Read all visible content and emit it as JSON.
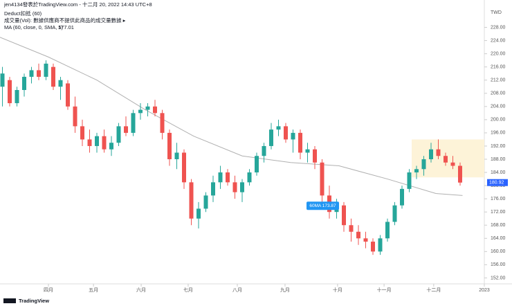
{
  "header": {
    "byline": "jen4134發表於TradingView.com - 十二月 20, 2022 14:43 UTC+8",
    "symbol": "Deduct扣抵 (60)",
    "volume_note": "成交量(Vol): 數據供應商不提供此商品的成交量數據 ▸",
    "currency": "TWD",
    "logo": "TradingView"
  },
  "chart_data": {
    "type": "candlestick",
    "ylim": [
      150.2,
      236.3
    ],
    "xlim": [
      0,
      200
    ],
    "yticks": [
      {
        "value": 152,
        "label": "152.00"
      },
      {
        "value": 156,
        "label": "156.00"
      },
      {
        "value": 160,
        "label": "160.00"
      },
      {
        "value": 164,
        "label": "164.00"
      },
      {
        "value": 168,
        "label": "168.00"
      },
      {
        "value": 172,
        "label": "172.00"
      },
      {
        "value": 176,
        "label": "176.00"
      },
      {
        "value": 180,
        "label": "180.00"
      },
      {
        "value": 184,
        "label": "184.00"
      },
      {
        "value": 188,
        "label": "188.00"
      },
      {
        "value": 192,
        "label": "192.00"
      },
      {
        "value": 196,
        "label": "196.00"
      },
      {
        "value": 200,
        "label": "200.00"
      },
      {
        "value": 204,
        "label": "204.00"
      },
      {
        "value": 208,
        "label": "208.00"
      },
      {
        "value": 212,
        "label": "212.00"
      },
      {
        "value": 216,
        "label": "216.00"
      },
      {
        "value": 220,
        "label": "220.00"
      },
      {
        "value": 224,
        "label": "224.00"
      },
      {
        "value": 228,
        "label": "228.00"
      }
    ],
    "xticks": [
      {
        "value": 20,
        "label": "四月"
      },
      {
        "value": 38.6,
        "label": "五月"
      },
      {
        "value": 58.3,
        "label": "六月"
      },
      {
        "value": 77.7,
        "label": "七月"
      },
      {
        "value": 98,
        "label": "八月"
      },
      {
        "value": 117.7,
        "label": "九月"
      },
      {
        "value": 139.4,
        "label": "十月"
      },
      {
        "value": 158.6,
        "label": "十一月"
      },
      {
        "value": 179.1,
        "label": "十二月"
      },
      {
        "value": 200,
        "label": "2023"
      }
    ],
    "up_color": "#26a69a",
    "down_color": "#ef5350",
    "x": [
      1,
      4,
      7,
      10,
      13,
      16,
      19,
      22,
      25,
      28,
      31,
      34,
      37,
      40,
      43,
      46,
      49,
      52,
      55,
      58,
      61,
      64,
      67,
      70,
      73,
      76,
      79,
      82,
      85,
      88,
      91,
      94,
      97,
      100,
      103,
      106,
      109,
      112,
      115,
      118,
      121,
      124,
      127,
      130,
      133,
      136,
      139,
      142,
      145,
      148,
      151,
      154,
      157,
      160,
      163,
      166,
      169,
      172,
      175,
      178,
      181,
      184,
      187,
      190
    ],
    "open": [
      210,
      212,
      205,
      209,
      213,
      215,
      213,
      216,
      210,
      211,
      204,
      198,
      194,
      192,
      195,
      191,
      193,
      198,
      196,
      202,
      203,
      204,
      202,
      196,
      188,
      190,
      181,
      170,
      173,
      177,
      181,
      184,
      181,
      178,
      181,
      184,
      189,
      192,
      197,
      198,
      194,
      196,
      190,
      191,
      187,
      177,
      172,
      174,
      168,
      166,
      164,
      163,
      160,
      164,
      169,
      174,
      179,
      184,
      185,
      188,
      191,
      189,
      187,
      186
    ],
    "high": [
      216,
      213,
      210,
      214,
      216,
      217,
      218,
      217,
      213,
      212,
      207,
      200,
      197,
      196,
      197,
      195,
      199,
      201,
      203,
      205,
      205,
      206,
      203,
      197,
      193,
      191,
      182,
      175,
      178,
      183,
      186,
      185,
      183,
      182,
      185,
      190,
      193,
      199,
      200,
      199,
      197,
      197,
      193,
      192,
      188,
      180,
      176,
      175,
      170,
      168,
      166,
      164,
      165,
      170,
      175,
      180,
      185,
      186,
      189,
      193,
      194,
      190,
      189,
      187
    ],
    "low": [
      204,
      204,
      204,
      207,
      211,
      212,
      212,
      209,
      206,
      203,
      196,
      192,
      190,
      190,
      190,
      189,
      192,
      195,
      195,
      200,
      201,
      201,
      194,
      186,
      185,
      179,
      168,
      167,
      172,
      175,
      179,
      180,
      176,
      175,
      180,
      183,
      187,
      191,
      195,
      193,
      190,
      188,
      187,
      185,
      175,
      170,
      170,
      166,
      163,
      162,
      161,
      159,
      159,
      163,
      168,
      173,
      178,
      182,
      183,
      187,
      188,
      186,
      185,
      180
    ],
    "close": [
      214,
      205,
      209,
      213,
      215,
      213,
      217,
      210,
      212,
      204,
      198,
      194,
      192,
      195,
      191,
      193,
      198,
      196,
      202,
      203,
      204,
      202,
      196,
      188,
      190,
      181,
      170,
      173,
      177,
      181,
      184,
      181,
      178,
      181,
      184,
      189,
      192,
      197,
      198,
      194,
      196,
      190,
      191,
      187,
      177,
      172,
      174,
      168,
      166,
      164,
      163,
      160,
      164,
      169,
      174,
      179,
      184,
      185,
      188,
      191,
      189,
      187,
      186,
      180.92
    ],
    "ma": {
      "name": "MA (60, close, 0, SMA, 5)",
      "color": "#b0b0b0",
      "x": [
        0,
        20,
        40,
        60,
        80,
        100,
        120,
        140,
        160,
        180,
        191
      ],
      "values": [
        225,
        219,
        212,
        203,
        195,
        189,
        187,
        186,
        182,
        177.6,
        177.01
      ]
    },
    "highlight": {
      "xlim": [
        170,
        200
      ],
      "ylim": [
        182.5,
        194
      ],
      "color": "#fdf3d8"
    },
    "callout": {
      "text": "60MA 173.87",
      "x": 140,
      "y": 173.87
    }
  }
}
